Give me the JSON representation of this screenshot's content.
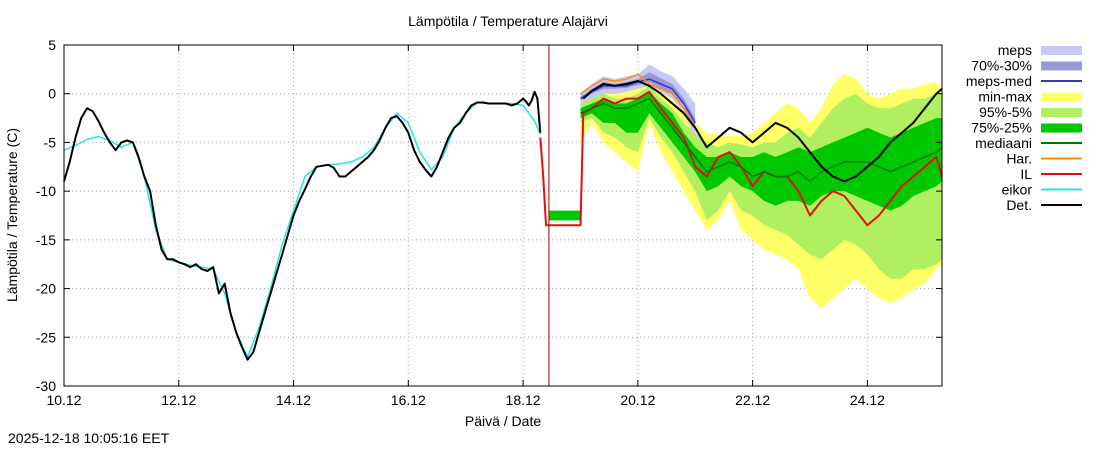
{
  "colors": {
    "meps": "#c8c8f8",
    "p70_30": "#9898d8",
    "meps_med": "#3838c0",
    "minmax": "#ffff66",
    "p95_5": "#b0f060",
    "p75_25": "#00c800",
    "mediaani": "#007800",
    "har": "#ff8c00",
    "il": "#e01010",
    "eikor": "#20e8e8",
    "det": "#000000",
    "now_line": "#a00000"
  },
  "chart_data": {
    "type": "line",
    "title": "Lämpötila / Temperature   Alajärvi",
    "xlabel": "Päivä / Date",
    "ylabel": "Lämpötila / Temperature (C)",
    "xlim": [
      10,
      25.3
    ],
    "ylim": [
      -30,
      5
    ],
    "x_unit": "days (day of December)",
    "xticks": [
      {
        "value": 10,
        "label": "10.12"
      },
      {
        "value": 12,
        "label": "12.12"
      },
      {
        "value": 14,
        "label": "14.12"
      },
      {
        "value": 16,
        "label": "16.12"
      },
      {
        "value": 18,
        "label": "18.12"
      },
      {
        "value": 20,
        "label": "20.12"
      },
      {
        "value": 22,
        "label": "22.12"
      },
      {
        "value": 24,
        "label": "24.12"
      }
    ],
    "yticks": [
      5,
      0,
      -5,
      -10,
      -15,
      -20,
      -25,
      -30
    ],
    "grid": true,
    "now_x": 18.45,
    "legend_position": "right",
    "legend": [
      {
        "key": "meps",
        "label": "meps",
        "style": "band"
      },
      {
        "key": "p70_30",
        "label": "70%-30%",
        "style": "band"
      },
      {
        "key": "meps_med",
        "label": "meps-med",
        "style": "line"
      },
      {
        "key": "minmax",
        "label": "min-max",
        "style": "band"
      },
      {
        "key": "p95_5",
        "label": "95%-5%",
        "style": "band"
      },
      {
        "key": "p75_25",
        "label": "75%-25%",
        "style": "band"
      },
      {
        "key": "mediaani",
        "label": "mediaani",
        "style": "line"
      },
      {
        "key": "har",
        "label": "Har.",
        "style": "line"
      },
      {
        "key": "il",
        "label": "IL",
        "style": "line"
      },
      {
        "key": "eikor",
        "label": "eikor",
        "style": "line"
      },
      {
        "key": "det",
        "label": "Det.",
        "style": "line"
      }
    ],
    "bands": [
      {
        "key": "minmax",
        "x": [
          19.0,
          19.2,
          19.4,
          19.6,
          19.8,
          20.0,
          20.2,
          20.4,
          20.6,
          20.8,
          21.0,
          21.2,
          21.4,
          21.6,
          21.8,
          22.0,
          22.2,
          22.4,
          22.6,
          22.8,
          23.0,
          23.2,
          23.4,
          23.6,
          23.8,
          24.0,
          24.2,
          24.4,
          24.6,
          24.8,
          25.0,
          25.2,
          25.3
        ],
        "upper": [
          0.0,
          0.8,
          1.6,
          1.2,
          1.0,
          2.0,
          2.2,
          0.5,
          0.2,
          -2.0,
          -3.0,
          -4.0,
          -4.2,
          -4.3,
          -4.3,
          -4.0,
          -3.0,
          -2.0,
          -1.0,
          -1.5,
          -3.0,
          -1.5,
          1.0,
          2.0,
          1.5,
          0.0,
          -0.5,
          0.0,
          0.5,
          0.5,
          1.0,
          1.2,
          0.5
        ],
        "lower": [
          -5.0,
          -3.0,
          -5.0,
          -6.0,
          -7.0,
          -8.0,
          -3.0,
          -6.0,
          -8.0,
          -10.0,
          -12.0,
          -14.0,
          -13.0,
          -11.0,
          -14.0,
          -15.0,
          -16.0,
          -16.5,
          -17.0,
          -18.0,
          -21.0,
          -22.0,
          -21.0,
          -20.0,
          -19.0,
          -20.0,
          -21.0,
          -21.5,
          -21.0,
          -20.0,
          -19.5,
          -18.0,
          -17.5
        ]
      },
      {
        "key": "p95_5",
        "x": [
          19.0,
          19.2,
          19.4,
          19.6,
          19.8,
          20.0,
          20.2,
          20.4,
          20.6,
          20.8,
          21.0,
          21.2,
          21.4,
          21.6,
          21.8,
          22.0,
          22.2,
          22.4,
          22.6,
          22.8,
          23.0,
          23.2,
          23.4,
          23.6,
          23.8,
          24.0,
          24.2,
          24.4,
          24.6,
          24.8,
          25.0,
          25.2,
          25.3
        ],
        "upper": [
          -1.0,
          -0.5,
          0.0,
          -0.5,
          -0.5,
          0.0,
          0.8,
          -0.5,
          -1.5,
          -3.0,
          -4.0,
          -5.0,
          -5.5,
          -5.0,
          -5.2,
          -5.5,
          -5.0,
          -5.0,
          -4.0,
          -3.5,
          -4.5,
          -3.0,
          -1.5,
          -0.5,
          0.0,
          -1.0,
          -1.5,
          -1.5,
          -1.0,
          -0.5,
          -0.5,
          0.0,
          0.0
        ],
        "lower": [
          -3.0,
          -2.5,
          -4.0,
          -4.5,
          -5.5,
          -6.0,
          -2.5,
          -4.5,
          -6.0,
          -8.0,
          -10.0,
          -13.0,
          -12.0,
          -10.0,
          -12.0,
          -12.5,
          -13.5,
          -14.0,
          -14.5,
          -15.5,
          -16.5,
          -17.0,
          -16.0,
          -15.0,
          -15.5,
          -16.5,
          -18.0,
          -19.0,
          -19.0,
          -18.0,
          -18.0,
          -17.5,
          -17.0
        ]
      },
      {
        "key": "p75_25",
        "x": [
          19.0,
          19.2,
          19.4,
          19.6,
          19.8,
          20.0,
          20.2,
          20.4,
          20.6,
          20.8,
          21.0,
          21.2,
          21.4,
          21.6,
          21.8,
          22.0,
          22.2,
          22.4,
          22.6,
          22.8,
          23.0,
          23.2,
          23.4,
          23.6,
          23.8,
          24.0,
          24.2,
          24.4,
          24.6,
          24.8,
          25.0,
          25.2,
          25.3
        ],
        "upper": [
          -1.5,
          -1.0,
          -0.5,
          -1.0,
          -1.0,
          -0.5,
          0.2,
          -1.0,
          -2.0,
          -4.0,
          -5.5,
          -6.5,
          -6.5,
          -6.0,
          -6.5,
          -6.5,
          -6.0,
          -6.5,
          -6.0,
          -5.5,
          -6.0,
          -5.5,
          -5.0,
          -4.5,
          -4.0,
          -3.5,
          -4.0,
          -4.5,
          -4.0,
          -3.5,
          -3.0,
          -2.5,
          -2.5
        ],
        "lower": [
          -2.5,
          -2.0,
          -3.0,
          -3.0,
          -4.0,
          -4.0,
          -2.0,
          -3.5,
          -5.0,
          -6.5,
          -8.0,
          -10.0,
          -9.5,
          -8.5,
          -9.5,
          -10.0,
          -11.0,
          -11.5,
          -11.0,
          -11.0,
          -11.5,
          -10.5,
          -10.0,
          -10.0,
          -10.5,
          -11.0,
          -11.5,
          -12.0,
          -11.5,
          -10.5,
          -10.0,
          -9.5,
          -9.0
        ]
      },
      {
        "key": "p75_25",
        "x": [
          18.45,
          18.6,
          18.8,
          19.0
        ],
        "upper": [
          -12.0,
          -12.0,
          -12.0,
          -12.0
        ],
        "lower": [
          -13.0,
          -13.0,
          -13.0,
          -13.0
        ]
      },
      {
        "key": "meps",
        "x": [
          19.0,
          19.2,
          19.4,
          19.6,
          19.8,
          20.0,
          20.2,
          20.4,
          20.6,
          20.8,
          21.0
        ],
        "upper": [
          0.0,
          1.0,
          1.8,
          1.5,
          1.8,
          2.0,
          3.0,
          2.3,
          1.8,
          0.5,
          -1.0
        ],
        "lower": [
          -1.0,
          -0.5,
          0.0,
          0.0,
          0.2,
          0.5,
          0.8,
          0.2,
          -0.5,
          -2.0,
          -4.5
        ]
      },
      {
        "key": "p70_30",
        "x": [
          19.0,
          19.2,
          19.4,
          19.6,
          19.8,
          20.0,
          20.2,
          20.4,
          20.6,
          20.8,
          21.0
        ],
        "upper": [
          -0.3,
          0.5,
          1.2,
          1.0,
          1.2,
          1.5,
          2.2,
          1.6,
          1.0,
          -0.5,
          -2.5
        ],
        "lower": [
          -0.7,
          0.0,
          0.5,
          0.5,
          0.6,
          0.9,
          1.2,
          0.6,
          0.0,
          -1.2,
          -3.5
        ]
      }
    ],
    "series": [
      {
        "key": "eikor",
        "name": "eikor",
        "x": [
          10.0,
          10.2,
          10.4,
          10.6,
          10.8,
          11.0,
          11.2,
          11.4,
          11.6,
          11.8,
          12.0,
          12.2,
          12.4,
          12.6,
          12.8,
          13.0,
          13.2,
          13.4,
          13.6,
          13.8,
          14.0,
          14.2,
          14.4,
          14.6,
          14.8,
          15.0,
          15.2,
          15.4,
          15.6,
          15.8,
          16.0,
          16.2,
          16.4,
          16.6,
          16.8,
          17.0,
          17.2,
          17.4,
          17.6,
          17.8,
          18.0,
          18.2,
          18.3
        ],
        "y": [
          -5.8,
          -5.3,
          -4.7,
          -4.4,
          -4.8,
          -5.5,
          -5.0,
          -8.5,
          -14.0,
          -17.0,
          -17.3,
          -17.6,
          -17.8,
          -18.0,
          -20.5,
          -24.5,
          -27.0,
          -24.0,
          -20.0,
          -15.5,
          -12.0,
          -8.5,
          -7.5,
          -7.3,
          -7.2,
          -7.0,
          -6.5,
          -5.5,
          -3.5,
          -2.0,
          -3.0,
          -6.0,
          -7.8,
          -6.5,
          -3.5,
          -2.0,
          -0.9,
          -1.0,
          -1.0,
          -1.0,
          -1.2,
          -2.8,
          -4.2
        ]
      },
      {
        "key": "det",
        "name": "Det.",
        "x": [
          10.0,
          10.1,
          10.2,
          10.3,
          10.4,
          10.5,
          10.6,
          10.7,
          10.8,
          10.9,
          11.0,
          11.1,
          11.2,
          11.3,
          11.4,
          11.5,
          11.6,
          11.7,
          11.8,
          11.9,
          12.0,
          12.1,
          12.2,
          12.3,
          12.4,
          12.5,
          12.6,
          12.7,
          12.8,
          12.9,
          13.0,
          13.1,
          13.2,
          13.3,
          13.4,
          13.5,
          13.6,
          13.7,
          13.8,
          13.9,
          14.0,
          14.1,
          14.2,
          14.3,
          14.4,
          14.5,
          14.6,
          14.7,
          14.8,
          14.9,
          15.0,
          15.1,
          15.2,
          15.3,
          15.4,
          15.5,
          15.6,
          15.7,
          15.8,
          15.9,
          16.0,
          16.1,
          16.2,
          16.3,
          16.4,
          16.5,
          16.6,
          16.7,
          16.8,
          16.9,
          17.0,
          17.1,
          17.2,
          17.3,
          17.4,
          17.5,
          17.6,
          17.7,
          17.8,
          17.9,
          18.0,
          18.05,
          18.1,
          18.15,
          18.2,
          18.25,
          18.3
        ],
        "y": [
          -9.0,
          -7.0,
          -4.5,
          -2.5,
          -1.5,
          -1.8,
          -2.8,
          -4.0,
          -5.0,
          -5.8,
          -5.0,
          -4.8,
          -5.0,
          -6.5,
          -8.5,
          -10.0,
          -13.5,
          -16.0,
          -17.0,
          -17.0,
          -17.3,
          -17.5,
          -17.8,
          -17.5,
          -18.0,
          -18.2,
          -17.8,
          -20.5,
          -19.5,
          -22.5,
          -24.5,
          -26.0,
          -27.3,
          -26.5,
          -24.5,
          -22.5,
          -20.5,
          -18.5,
          -16.5,
          -14.5,
          -12.5,
          -11.0,
          -9.8,
          -8.5,
          -7.5,
          -7.4,
          -7.3,
          -7.6,
          -8.5,
          -8.5,
          -8.0,
          -7.5,
          -7.0,
          -6.5,
          -5.8,
          -4.8,
          -3.5,
          -2.5,
          -2.3,
          -3.0,
          -4.0,
          -5.8,
          -7.0,
          -7.8,
          -8.5,
          -7.5,
          -6.0,
          -4.5,
          -3.5,
          -3.0,
          -2.0,
          -1.2,
          -0.9,
          -0.9,
          -1.0,
          -1.0,
          -1.0,
          -1.0,
          -1.2,
          -1.0,
          -0.5,
          -0.8,
          -1.2,
          -0.7,
          0.2,
          -0.5,
          -4.0
        ]
      },
      {
        "key": "il",
        "name": "IL",
        "x": [
          18.3,
          18.35,
          18.4,
          18.45,
          18.6,
          18.8,
          19.0,
          19.05,
          19.2,
          19.4,
          19.6,
          19.8,
          20.0,
          20.2,
          20.4,
          20.6,
          20.8,
          21.0,
          21.2,
          21.4,
          21.6,
          21.8,
          22.0,
          22.2,
          22.4,
          22.6,
          22.8,
          23.0,
          23.2,
          23.4,
          23.6,
          23.8,
          24.0,
          24.2,
          24.4,
          24.6,
          24.8,
          25.0,
          25.2,
          25.3
        ],
        "y": [
          -4.5,
          -8.5,
          -13.5,
          -13.5,
          -13.5,
          -13.5,
          -13.5,
          -2.0,
          -1.5,
          -0.5,
          -1.0,
          -0.5,
          -0.5,
          0.2,
          -1.5,
          -3.0,
          -4.5,
          -7.5,
          -8.5,
          -6.5,
          -6.0,
          -7.5,
          -9.5,
          -8.0,
          -8.5,
          -8.5,
          -10.0,
          -12.5,
          -11.0,
          -10.0,
          -10.5,
          -12.0,
          -13.5,
          -12.5,
          -11.0,
          -9.5,
          -8.5,
          -7.5,
          -6.5,
          -8.5
        ]
      },
      {
        "key": "mediaani",
        "name": "mediaani",
        "x": [
          19.0,
          19.2,
          19.4,
          19.6,
          19.8,
          20.0,
          20.2,
          20.4,
          20.6,
          20.8,
          21.0,
          21.2,
          21.4,
          21.6,
          21.8,
          22.0,
          22.2,
          22.4,
          22.6,
          22.8,
          23.0,
          23.2,
          23.4,
          23.6,
          23.8,
          24.0,
          24.2,
          24.4,
          24.6,
          24.8,
          25.0,
          25.2,
          25.3
        ],
        "y": [
          -2.0,
          -1.5,
          -1.0,
          -1.5,
          -1.5,
          -1.0,
          -0.5,
          -2.0,
          -3.5,
          -5.0,
          -6.5,
          -8.0,
          -7.5,
          -7.0,
          -7.5,
          -8.5,
          -8.0,
          -8.5,
          -8.5,
          -8.0,
          -9.0,
          -8.0,
          -7.5,
          -7.0,
          -7.0,
          -7.0,
          -7.5,
          -8.0,
          -7.5,
          -7.0,
          -6.5,
          -6.0,
          -5.5
        ]
      },
      {
        "key": "meps_med",
        "name": "meps-med",
        "x": [
          19.0,
          19.2,
          19.4,
          19.6,
          19.8,
          20.0,
          20.2,
          20.4,
          20.6,
          20.8,
          21.0
        ],
        "y": [
          -0.5,
          0.2,
          0.8,
          0.8,
          0.8,
          1.2,
          1.5,
          1.0,
          0.5,
          -1.0,
          -3.0
        ]
      },
      {
        "key": "har",
        "name": "Har.",
        "x": [
          19.0,
          19.2,
          19.4,
          19.6,
          19.8,
          20.0,
          20.2,
          20.4,
          20.6,
          20.8,
          21.0
        ],
        "y": [
          0.0,
          0.8,
          1.5,
          1.3,
          1.5,
          2.0,
          1.0,
          0.5,
          0.0,
          -1.5,
          -3.5
        ]
      },
      {
        "key": "det",
        "name": "Det.",
        "x": [
          19.05,
          19.2,
          19.4,
          19.6,
          19.8,
          20.0,
          20.2,
          20.4,
          20.6,
          20.8,
          21.0,
          21.2,
          21.4,
          21.6,
          21.8,
          22.0,
          22.2,
          22.4,
          22.6,
          22.8,
          23.0,
          23.2,
          23.4,
          23.6,
          23.8,
          24.0,
          24.2,
          24.4,
          24.6,
          24.8,
          25.0,
          25.2,
          25.3
        ],
        "y": [
          -0.5,
          0.3,
          1.0,
          0.8,
          1.0,
          1.3,
          0.8,
          0.0,
          -1.0,
          -2.0,
          -3.5,
          -5.5,
          -4.5,
          -3.5,
          -4.0,
          -5.0,
          -4.0,
          -3.0,
          -3.5,
          -4.5,
          -6.0,
          -7.5,
          -8.5,
          -9.0,
          -8.5,
          -7.5,
          -6.5,
          -5.0,
          -4.0,
          -3.0,
          -1.5,
          0.0,
          0.5
        ]
      }
    ]
  },
  "footer": {
    "timestamp": "2025-12-18 10:05:16 EET"
  }
}
